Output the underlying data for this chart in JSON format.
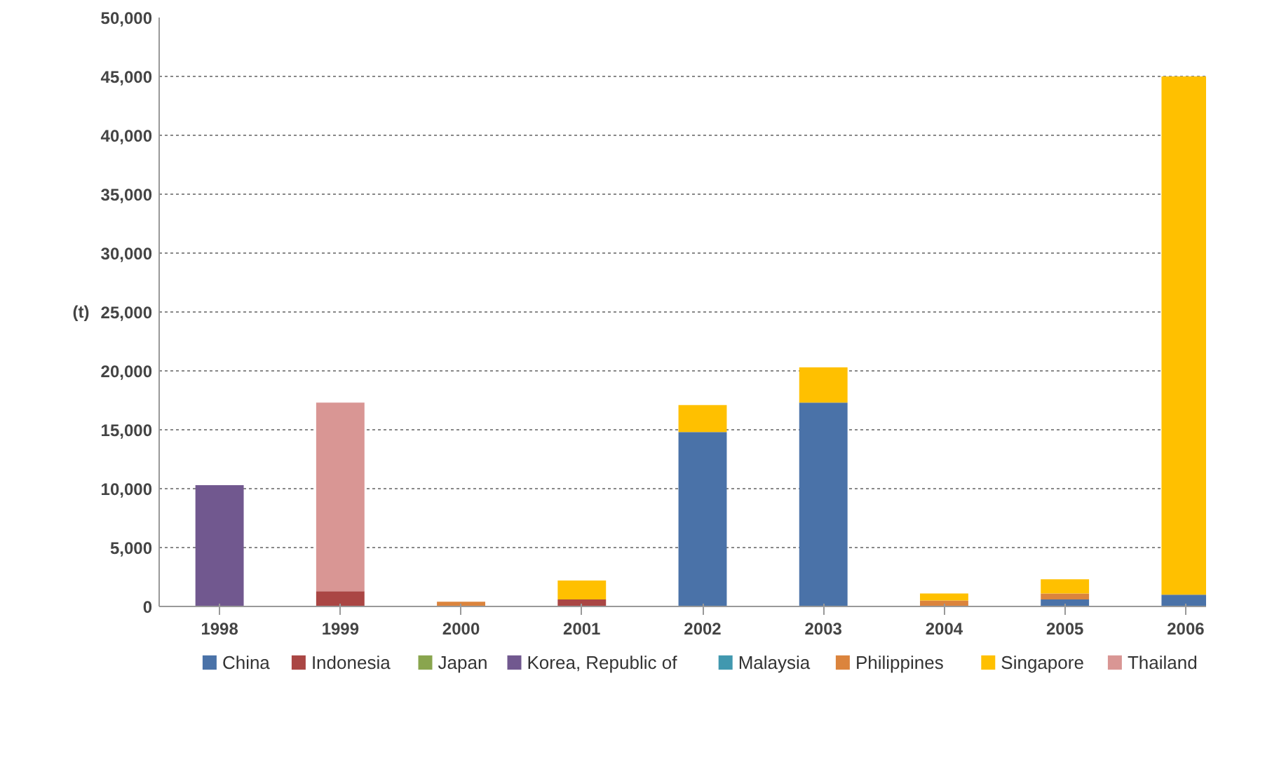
{
  "chart_data": {
    "type": "bar",
    "stacked": true,
    "ylabel": "(t)",
    "categories": [
      "1998",
      "1999",
      "2000",
      "2001",
      "2002",
      "2003",
      "2004",
      "2005",
      "2006"
    ],
    "series": [
      {
        "name": "China",
        "color": "#4a72a8",
        "values": [
          0,
          0,
          0,
          0,
          14800,
          17300,
          0,
          600,
          1000
        ]
      },
      {
        "name": "Indonesia",
        "color": "#aa4644",
        "values": [
          0,
          1300,
          0,
          600,
          0,
          0,
          0,
          0,
          0
        ]
      },
      {
        "name": "Japan",
        "color": "#89a54e",
        "values": [
          0,
          0,
          0,
          0,
          0,
          0,
          0,
          0,
          0
        ]
      },
      {
        "name": "Korea, Republic of",
        "color": "#71588f",
        "values": [
          10300,
          0,
          0,
          0,
          0,
          0,
          0,
          0,
          0
        ]
      },
      {
        "name": "Malaysia",
        "color": "#4198af",
        "values": [
          0,
          0,
          0,
          0,
          0,
          0,
          0,
          0,
          0
        ]
      },
      {
        "name": "Philippines",
        "color": "#db843d",
        "values": [
          0,
          0,
          400,
          0,
          0,
          0,
          500,
          500,
          0
        ]
      },
      {
        "name": "Singapore",
        "color": "#ffc000",
        "values": [
          0,
          0,
          0,
          1600,
          2300,
          3000,
          600,
          1200,
          44000
        ]
      },
      {
        "name": "Thailand",
        "color": "#d99694",
        "values": [
          0,
          16000,
          0,
          0,
          0,
          0,
          0,
          0,
          0
        ]
      }
    ],
    "ylim": [
      0,
      50000
    ],
    "yticks": [
      {
        "value": 0,
        "label": "0"
      },
      {
        "value": 5000,
        "label": "5,000"
      },
      {
        "value": 10000,
        "label": "10,000"
      },
      {
        "value": 15000,
        "label": "15,000"
      },
      {
        "value": 20000,
        "label": "20,000"
      },
      {
        "value": 25000,
        "label": "25,000"
      },
      {
        "value": 30000,
        "label": "30,000"
      },
      {
        "value": 35000,
        "label": "35,000"
      },
      {
        "value": 40000,
        "label": "40,000"
      },
      {
        "value": 45000,
        "label": "45,000"
      },
      {
        "value": 50000,
        "label": "50,000"
      }
    ],
    "grid": "y",
    "legend": "bottom"
  }
}
